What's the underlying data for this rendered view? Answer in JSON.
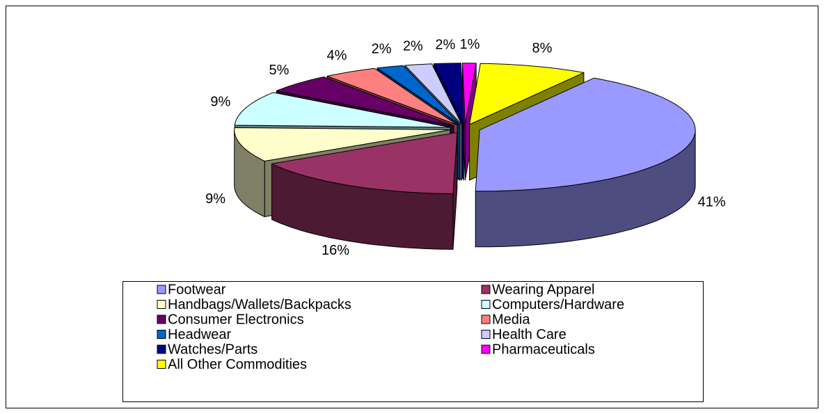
{
  "chart_data": {
    "type": "pie",
    "categories": [
      "Footwear",
      "Wearing Apparel",
      "Handbags/Wallets/Backpacks",
      "Computers/Hardware",
      "Consumer Electronics",
      "Media",
      "Headwear",
      "Health Care",
      "Watches/Parts",
      "Pharmaceuticals",
      "All Other Commodities"
    ],
    "values": [
      41,
      16,
      9,
      9,
      5,
      4,
      2,
      2,
      2,
      1,
      8
    ],
    "value_labels": [
      "41%",
      "16%",
      "9%",
      "9%",
      "5%",
      "4%",
      "2%",
      "2%",
      "2%",
      "1%",
      "8%"
    ],
    "colors": [
      "#9999ff",
      "#993366",
      "#ffffcc",
      "#ccffff",
      "#660066",
      "#ff8080",
      "#0066cc",
      "#ccccff",
      "#000080",
      "#ff00ff",
      "#ffff00"
    ],
    "legend": "bottom"
  }
}
